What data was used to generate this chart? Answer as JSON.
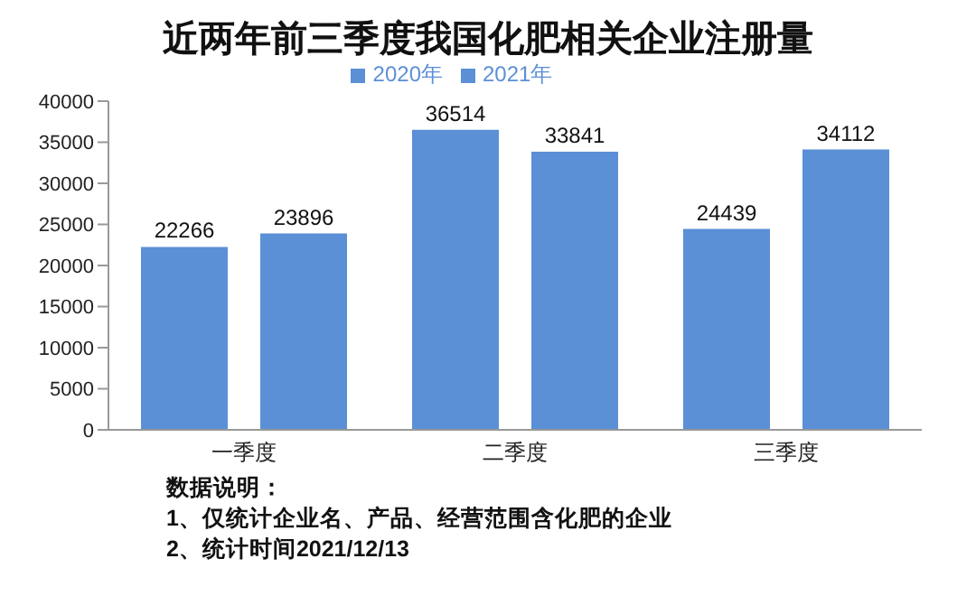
{
  "chart_data": {
    "type": "bar",
    "title": "近两年前三季度我国化肥相关企业注册量",
    "categories": [
      "一季度",
      "二季度",
      "三季度"
    ],
    "series": [
      {
        "name": "2020年",
        "color": "#5b8fd6",
        "values": [
          22266,
          36514,
          24439
        ]
      },
      {
        "name": "2021年",
        "color": "#5b8fd6",
        "values": [
          23896,
          33841,
          34112
        ]
      }
    ],
    "ylim": [
      0,
      40000
    ],
    "yticks": [
      0,
      5000,
      10000,
      15000,
      20000,
      25000,
      30000,
      35000,
      40000
    ],
    "data_labels": true,
    "legend": "top",
    "grid": false,
    "annotations": [
      "数据说明：",
      "1、仅统计企业名、产品、经营范围含化肥的企业",
      "2、统计时间2021/12/13"
    ]
  }
}
